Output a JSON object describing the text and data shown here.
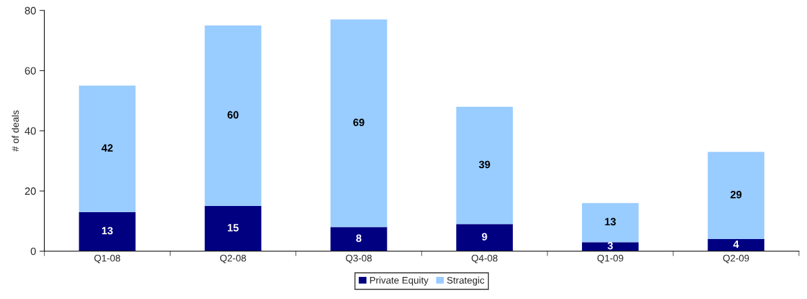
{
  "chart_data": {
    "type": "bar",
    "stacked": true,
    "ylabel": "# of deals",
    "categories": [
      "Q1-08",
      "Q2-08",
      "Q3-08",
      "Q4-08",
      "Q1-09",
      "Q2-09"
    ],
    "series": [
      {
        "name": "Private Equity",
        "color": "#000080",
        "values": [
          13,
          15,
          8,
          9,
          3,
          4
        ]
      },
      {
        "name": "Strategic",
        "color": "#99ccff",
        "values": [
          42,
          60,
          69,
          39,
          13,
          29
        ]
      }
    ],
    "ylim": [
      0,
      80
    ],
    "yticks": [
      0,
      20,
      40,
      60,
      80
    ],
    "data_labels": true,
    "legend": "bottom",
    "grid": false
  }
}
